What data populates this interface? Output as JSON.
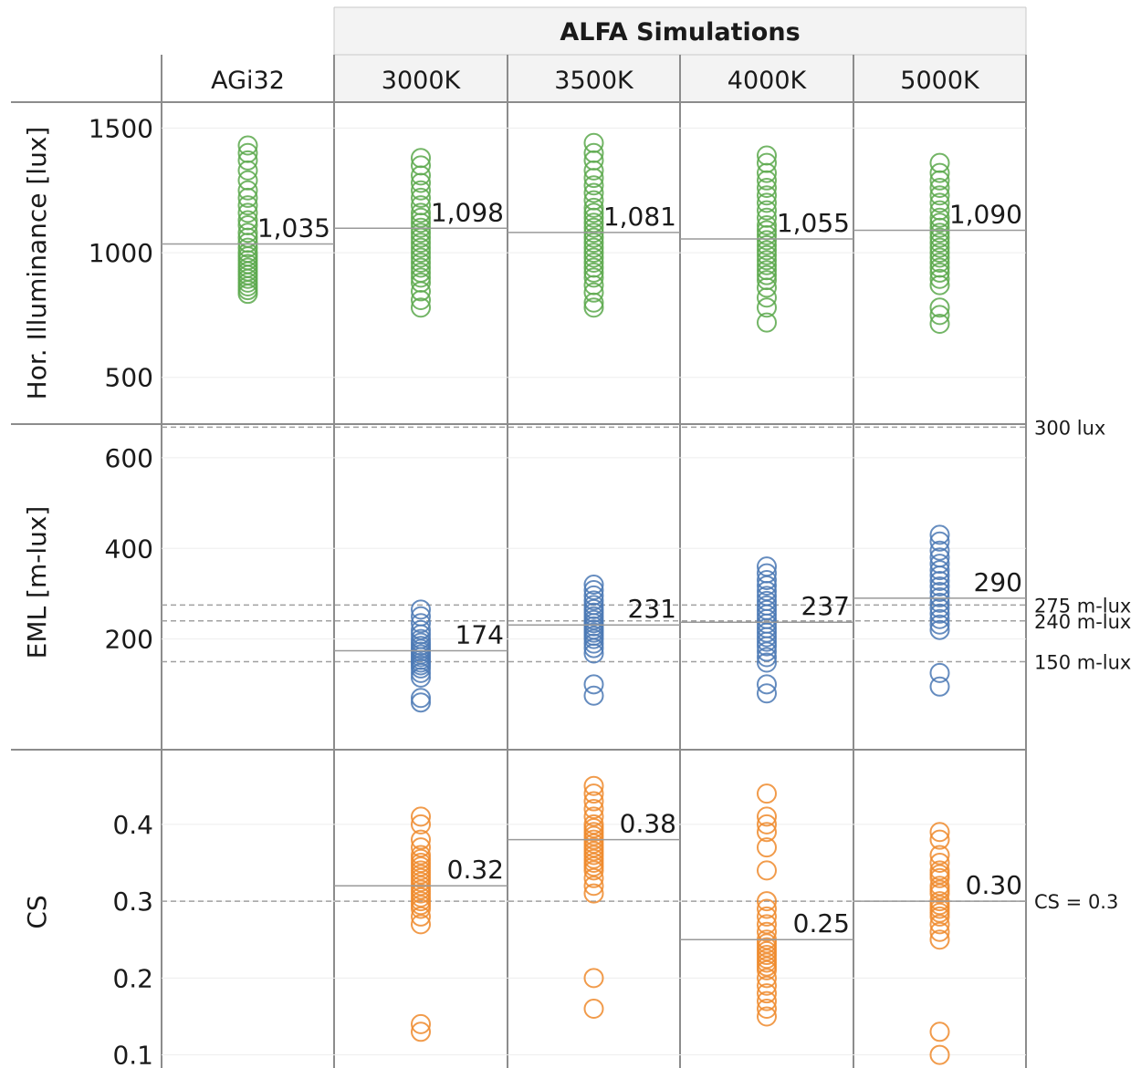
{
  "chart_data": {
    "type": "scatter",
    "title": "ALFA Simulations",
    "columns": [
      "AGi32",
      "3000K",
      "3500K",
      "4000K",
      "5000K"
    ],
    "group_header": {
      "label": "ALFA Simulations",
      "spans_columns": [
        "3000K",
        "3500K",
        "4000K",
        "5000K"
      ]
    },
    "colors": {
      "illuminance": "#5aa84b",
      "eml": "#4a78b4",
      "cs": "#ef8a2c"
    },
    "panels": [
      {
        "id": "illuminance",
        "ylabel": "Hor. Illuminance [lux]",
        "ylim": [
          360,
          1560
        ],
        "ticks": [
          500,
          1000,
          1500
        ],
        "tick_labels": [
          "500",
          "1000",
          "1500"
        ],
        "thresholds": [
          {
            "value": 300,
            "label": "300 lux"
          }
        ],
        "series": [
          {
            "column": "AGi32",
            "mean": 1035,
            "mean_label": "1,035",
            "values": [
              1430,
              1400,
              1370,
              1330,
              1290,
              1250,
              1220,
              1190,
              1160,
              1130,
              1110,
              1080,
              1060,
              1040,
              1020,
              1000,
              985,
              970,
              955,
              940,
              925,
              910,
              895,
              880,
              865,
              850,
              835
            ]
          },
          {
            "column": "3000K",
            "mean": 1098,
            "mean_label": "1,098",
            "values": [
              1380,
              1350,
              1310,
              1280,
              1250,
              1220,
              1190,
              1160,
              1140,
              1120,
              1100,
              1080,
              1060,
              1040,
              1020,
              1000,
              980,
              960,
              940,
              920,
              900,
              880,
              845,
              810,
              780
            ]
          },
          {
            "column": "3500K",
            "mean": 1081,
            "mean_label": "1,081",
            "values": [
              1440,
              1400,
              1370,
              1330,
              1300,
              1270,
              1240,
              1210,
              1180,
              1160,
              1140,
              1120,
              1100,
              1080,
              1060,
              1040,
              1020,
              1000,
              980,
              960,
              940,
              920,
              900,
              870,
              840,
              800,
              780
            ]
          },
          {
            "column": "4000K",
            "mean": 1055,
            "mean_label": "1,055",
            "values": [
              1390,
              1360,
              1320,
              1290,
              1260,
              1230,
              1200,
              1170,
              1140,
              1110,
              1090,
              1070,
              1050,
              1030,
              1010,
              990,
              970,
              950,
              930,
              910,
              890,
              860,
              820,
              780,
              720
            ]
          },
          {
            "column": "5000K",
            "mean": 1090,
            "mean_label": "1,090",
            "values": [
              1360,
              1320,
              1290,
              1260,
              1230,
              1200,
              1170,
              1140,
              1120,
              1100,
              1080,
              1060,
              1040,
              1020,
              1000,
              980,
              960,
              940,
              920,
              895,
              870,
              780,
              750,
              715
            ]
          }
        ]
      },
      {
        "id": "eml",
        "ylabel": "EML [m-lux]",
        "ylim": [
          0,
          640
        ],
        "ticks": [
          200,
          400,
          600
        ],
        "tick_labels": [
          "200",
          "400",
          "600"
        ],
        "thresholds": [
          {
            "value": 275,
            "label": "275 m-lux"
          },
          {
            "value": 240,
            "label": "240 m-lux"
          },
          {
            "value": 150,
            "label": "150 m-lux"
          }
        ],
        "series": [
          {
            "column": "3000K",
            "mean": 174,
            "mean_label": "174",
            "values": [
              265,
              250,
              235,
              220,
              210,
              200,
              192,
              185,
              178,
              172,
              166,
              160,
              154,
              148,
              142,
              135,
              125,
              115,
              70,
              60
            ]
          },
          {
            "column": "3500K",
            "mean": 231,
            "mean_label": "231",
            "values": [
              320,
              308,
              296,
              285,
              275,
              266,
              258,
              250,
              242,
              235,
              228,
              221,
              214,
              207,
              200,
              190,
              180,
              168,
              100,
              75
            ]
          },
          {
            "column": "4000K",
            "mean": 237,
            "mean_label": "237",
            "values": [
              360,
              345,
              330,
              318,
              306,
              295,
              284,
              274,
              264,
              254,
              244,
              234,
              224,
              214,
              204,
              194,
              184,
              172,
              160,
              148,
              100,
              80
            ]
          },
          {
            "column": "5000K",
            "mean": 290,
            "mean_label": "290",
            "values": [
              430,
              415,
              395,
              380,
              366,
              352,
              340,
              328,
              316,
              304,
              292,
              280,
              268,
              256,
              244,
              232,
              220,
              125,
              95
            ]
          }
        ]
      },
      {
        "id": "cs",
        "ylabel": "CS",
        "ylim": [
          0.09,
          0.49
        ],
        "ticks": [
          0.1,
          0.2,
          0.3,
          0.4
        ],
        "tick_labels": [
          "0.1",
          "0.2",
          "0.3",
          "0.4"
        ],
        "thresholds": [
          {
            "value": 0.3,
            "label": "CS = 0.3"
          }
        ],
        "series": [
          {
            "column": "3000K",
            "mean": 0.32,
            "mean_label": "0.32",
            "values": [
              0.41,
              0.4,
              0.38,
              0.37,
              0.36,
              0.355,
              0.35,
              0.345,
              0.34,
              0.335,
              0.33,
              0.325,
              0.32,
              0.315,
              0.31,
              0.305,
              0.3,
              0.295,
              0.29,
              0.28,
              0.27,
              0.14,
              0.13
            ]
          },
          {
            "column": "3500K",
            "mean": 0.38,
            "mean_label": "0.38",
            "values": [
              0.45,
              0.44,
              0.43,
              0.42,
              0.41,
              0.4,
              0.395,
              0.39,
              0.385,
              0.38,
              0.375,
              0.37,
              0.365,
              0.36,
              0.355,
              0.35,
              0.345,
              0.34,
              0.33,
              0.32,
              0.31,
              0.2,
              0.16
            ]
          },
          {
            "column": "4000K",
            "mean": 0.25,
            "mean_label": "0.25",
            "values": [
              0.44,
              0.41,
              0.4,
              0.39,
              0.37,
              0.34,
              0.3,
              0.29,
              0.28,
              0.27,
              0.26,
              0.25,
              0.245,
              0.24,
              0.235,
              0.23,
              0.225,
              0.22,
              0.215,
              0.21,
              0.2,
              0.19,
              0.18,
              0.17,
              0.16,
              0.15
            ]
          },
          {
            "column": "5000K",
            "mean": 0.3,
            "mean_label": "0.30",
            "values": [
              0.39,
              0.38,
              0.36,
              0.35,
              0.34,
              0.335,
              0.33,
              0.32,
              0.315,
              0.31,
              0.3,
              0.295,
              0.29,
              0.285,
              0.28,
              0.27,
              0.26,
              0.25,
              0.13,
              0.1
            ]
          }
        ]
      }
    ],
    "grid": true,
    "mean_line": true
  }
}
